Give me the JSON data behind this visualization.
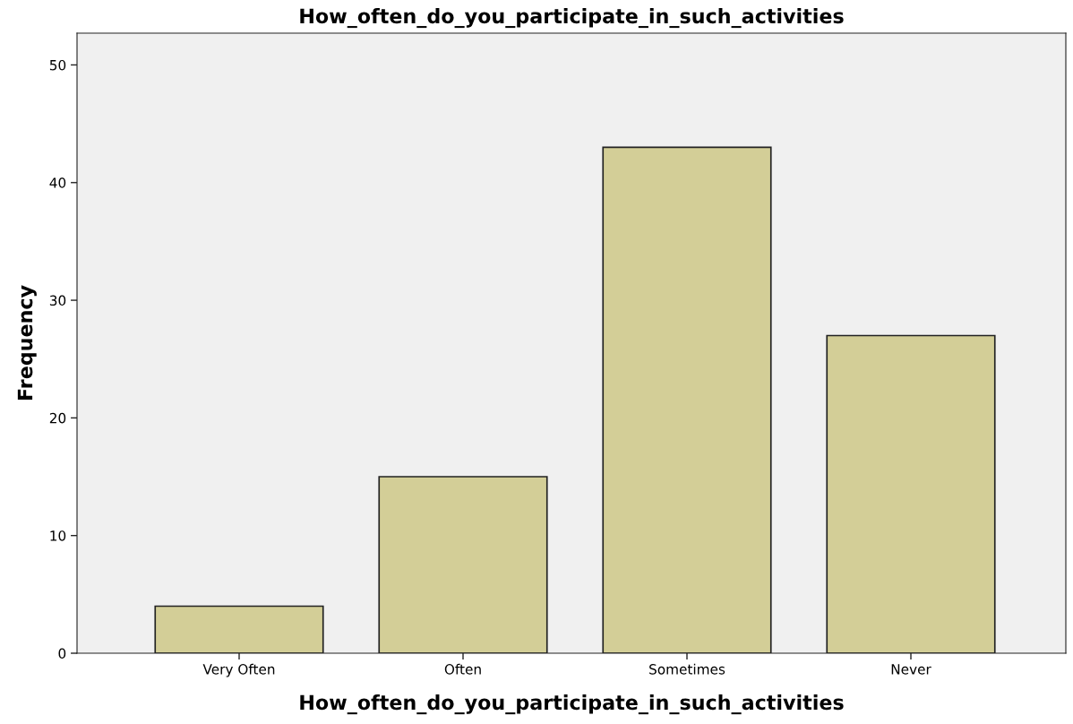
{
  "chart_data": {
    "type": "bar",
    "title": "How_often_do_you_participate_in_such_activities",
    "xlabel": "How_often_do_you_participate_in_such_activities",
    "ylabel": "Frequency",
    "categories": [
      "Very Often",
      "Often",
      "Sometimes",
      "Never"
    ],
    "values": [
      4,
      15,
      43,
      27
    ],
    "color": "#d3ce97",
    "ylim": [
      0,
      52.7
    ],
    "yticks": [
      0,
      10,
      20,
      30,
      40,
      50
    ],
    "grid": false,
    "legend": false
  }
}
